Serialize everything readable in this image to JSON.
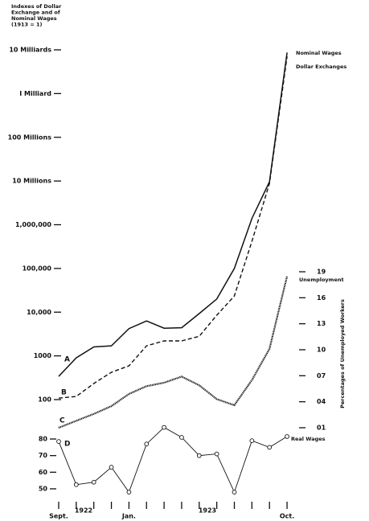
{
  "chart_data": {
    "type": "line",
    "title": [
      "Indexes of Dollar",
      "Exchange and of",
      "Nominal Wages",
      "(1913 = 1)"
    ],
    "categories": [
      "Sept.",
      null,
      null,
      null,
      "Jan.",
      null,
      null,
      null,
      null,
      null,
      null,
      null,
      null,
      "Oct."
    ],
    "year_labels": [
      "1922",
      "1923"
    ],
    "log_scale": true,
    "ylim": [
      100,
      10000000000
    ],
    "yticks": [
      100,
      1000,
      {
        "value": 10000,
        "label": "10,000"
      },
      {
        "value": 100000,
        "label": "100,000"
      },
      {
        "value": 1000000,
        "label": "1,000,000"
      },
      {
        "value": 10000000,
        "label": "10 Millions"
      },
      {
        "value": 100000000,
        "label": "100 Millions"
      },
      {
        "value": 1000000000,
        "label": "I Milliard"
      },
      {
        "value": 10000000000,
        "label": "10 Milliards"
      }
    ],
    "y2label": "Percentages of Unemployed Workers",
    "y2lim": [
      1,
      19
    ],
    "y2ticks": [
      {
        "value": 1,
        "label": "01"
      },
      {
        "value": 4,
        "label": "04"
      },
      {
        "value": 7,
        "label": "07"
      },
      10,
      13,
      16,
      19
    ],
    "y3lim": [
      45,
      85
    ],
    "y3ticks": [
      50,
      60,
      70,
      80
    ],
    "series": [
      {
        "name": "Nominal Wages",
        "letter": "A",
        "axis": "y",
        "color": "#111",
        "dash": "solid",
        "values": [
          340,
          900,
          1600,
          1700,
          4200,
          6300,
          4300,
          4400,
          9300,
          20000,
          100000,
          1400000,
          9600000,
          8700000000
        ]
      },
      {
        "name": "Dollar Exchanges",
        "letter": "B",
        "axis": "y",
        "color": "#111",
        "dash": "dashed",
        "values": [
          108,
          118,
          233,
          422,
          592,
          1700,
          2200,
          2200,
          2800,
          8500,
          23500,
          420000,
          8800000,
          7100000000
        ]
      },
      {
        "name": "Unemployment",
        "letter": "C",
        "axis": "y2",
        "color": "#111",
        "dash": "dotted",
        "values": [
          1.0,
          1.8,
          2.6,
          3.5,
          4.9,
          5.8,
          6.2,
          6.9,
          5.9,
          4.3,
          3.6,
          6.5,
          10.1,
          18.5
        ]
      },
      {
        "name": "Real Wages",
        "letter": "D",
        "axis": "y3",
        "color": "#111",
        "dash": "solid",
        "marker": "circle",
        "values": [
          78.5,
          52.5,
          54,
          63,
          48,
          77,
          87,
          81,
          70,
          71,
          48,
          79,
          75,
          81.5
        ]
      }
    ]
  }
}
